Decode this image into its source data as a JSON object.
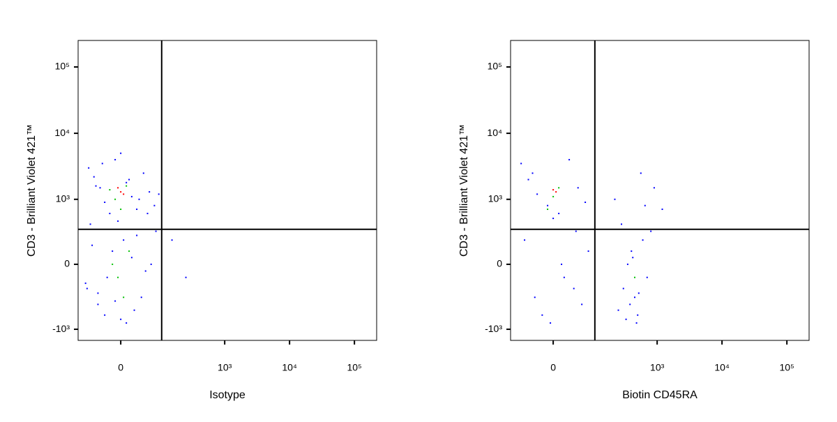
{
  "chart_data": [
    {
      "type": "scatter",
      "x_label": "Isotype",
      "y_label": "CD3 - Brilliant Violet 421™",
      "xscale": "biexponential",
      "xlinear_width": 50,
      "yscale": "biexponential",
      "ylinear_width": 212,
      "xlim": [
        -108,
        220000
      ],
      "ylim": [
        -1480,
        251000
      ],
      "xticks": [
        0,
        {
          "value": 1000,
          "label": "10³"
        },
        {
          "value": 10000,
          "label": "10⁴"
        },
        {
          "value": 100000,
          "label": "10⁵"
        }
      ],
      "yticks": [
        {
          "value": -1000,
          "label": "-10³"
        },
        0,
        {
          "value": 1000,
          "label": "10³"
        },
        {
          "value": 10000,
          "label": "10⁴"
        },
        {
          "value": 100000,
          "label": "10⁵"
        }
      ],
      "gates": {
        "x": 101,
        "y": 326
      },
      "series": [
        {
          "color": "#0000ff",
          "x": [
            -70,
            -55,
            -40,
            -30,
            -20,
            -10,
            0,
            10,
            20,
            30,
            45,
            60,
            75,
            -65,
            -35,
            -5,
            15,
            35,
            55,
            -50,
            -75,
            -45,
            -25,
            -15,
            5,
            25,
            40,
            65,
            -60,
            0,
            80,
            -80,
            50,
            -30,
            20,
            -10,
            30,
            -45,
            10,
            90,
            150,
            250
          ],
          "y": [
            3000,
            2200,
            1500,
            900,
            600,
            4000,
            5000,
            1800,
            1100,
            700,
            2500,
            1300,
            800,
            400,
            3500,
            450,
            2000,
            1000,
            600,
            1600,
            -200,
            -400,
            -100,
            100,
            200,
            -500,
            -300,
            0,
            150,
            -700,
            300,
            -150,
            -50,
            -600,
            50,
            -350,
            250,
            -250,
            -800,
            1200,
            200,
            -100
          ]
        },
        {
          "color": "#00c000",
          "x": [
            -20,
            -10,
            0,
            10,
            -5,
            5,
            15,
            -15
          ],
          "y": [
            1400,
            1000,
            700,
            1600,
            -100,
            -300,
            100,
            0
          ]
        },
        {
          "color": "#ff0000",
          "x": [
            0,
            -5,
            5
          ],
          "y": [
            1300,
            1500,
            1200
          ]
        }
      ]
    },
    {
      "type": "scatter",
      "x_label": "Biotin CD45RA",
      "y_label": "CD3 - Brilliant Violet 421™",
      "xscale": "biexponential",
      "xlinear_width": 50,
      "yscale": "biexponential",
      "ylinear_width": 212,
      "xlim": [
        -108,
        220000
      ],
      "ylim": [
        -1480,
        251000
      ],
      "xticks": [
        0,
        {
          "value": 1000,
          "label": "10³"
        },
        {
          "value": 10000,
          "label": "10⁴"
        },
        {
          "value": 100000,
          "label": "10⁵"
        }
      ],
      "yticks": [
        {
          "value": -1000,
          "label": "-10³"
        },
        0,
        {
          "value": 1000,
          "label": "10³"
        },
        {
          "value": 10000,
          "label": "10⁴"
        },
        {
          "value": 100000,
          "label": "10⁵"
        }
      ],
      "gates": {
        "x": 104,
        "y": 326
      },
      "series": [
        {
          "color": "#0000ff",
          "x": [
            -70,
            -50,
            -30,
            -10,
            10,
            30,
            50,
            70,
            -40,
            0,
            20,
            60,
            -60,
            -20,
            40,
            80,
            -35,
            15,
            -5,
            45,
            250,
            300,
            350,
            400,
            450,
            500,
            600,
            700,
            800,
            380,
            420,
            520,
            330,
            280,
            650,
            900,
            480,
            220,
            560,
            1200
          ],
          "y": [
            3500,
            2000,
            1200,
            800,
            600,
            4000,
            1500,
            900,
            2500,
            500,
            -100,
            -400,
            200,
            -600,
            -200,
            100,
            -300,
            0,
            -800,
            300,
            -500,
            -200,
            0,
            100,
            -300,
            -600,
            200,
            -100,
            300,
            -400,
            50,
            -250,
            -700,
            400,
            800,
            1500,
            -800,
            1000,
            2500,
            700
          ]
        },
        {
          "color": "#00c000",
          "x": [
            0,
            10,
            -10,
            450
          ],
          "y": [
            1100,
            1500,
            700,
            -100
          ]
        },
        {
          "color": "#ff0000",
          "x": [
            0,
            5
          ],
          "y": [
            1400,
            1300
          ]
        }
      ]
    }
  ]
}
